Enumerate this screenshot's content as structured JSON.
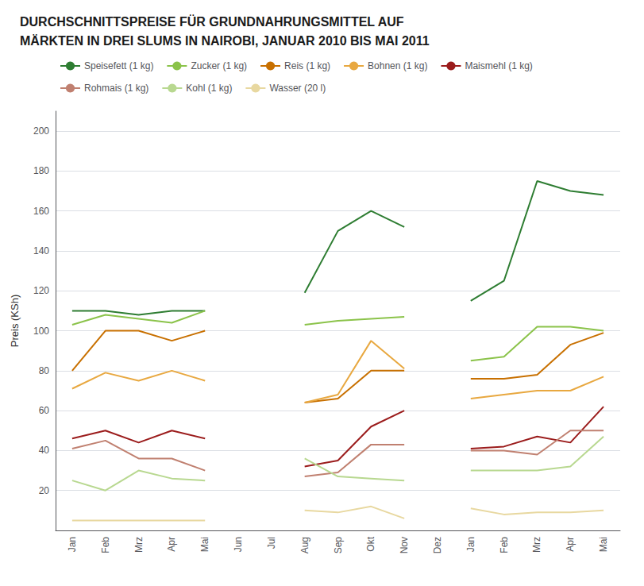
{
  "chart_data": {
    "type": "line",
    "title": "DURCHSCHNITTSPREISE FÜR GRUNDNAHRUNGSMITTEL AUF\nMÄRKTEN IN DREI SLUMS IN NAIROBI, JANUAR 2010 BIS MAI 2011",
    "ylabel": "Preis (KSh)",
    "categories": [
      "Jan",
      "Feb",
      "Mrz",
      "Apr",
      "Mai",
      "Jun",
      "Jul",
      "Aug",
      "Sep",
      "Okt",
      "Nov",
      "Dez",
      "Jan",
      "Feb",
      "Mrz",
      "Apr",
      "Mai"
    ],
    "series": [
      {
        "name": "Speisefett (1 kg)",
        "color": "#2e7d32",
        "values": [
          110,
          110,
          108,
          110,
          110,
          null,
          null,
          119,
          150,
          160,
          152,
          null,
          115,
          125,
          175,
          170,
          168
        ]
      },
      {
        "name": "Zucker (1 kg)",
        "color": "#8bc34a",
        "values": [
          103,
          108,
          106,
          104,
          110,
          null,
          null,
          103,
          105,
          106,
          107,
          null,
          85,
          87,
          102,
          102,
          100
        ]
      },
      {
        "name": "Reis (1 kg)",
        "color": "#c87000",
        "values": [
          80,
          100,
          100,
          95,
          100,
          null,
          null,
          64,
          66,
          80,
          80,
          null,
          76,
          76,
          78,
          93,
          99
        ]
      },
      {
        "name": "Bohnen (1 kg)",
        "color": "#e8a840",
        "values": [
          71,
          79,
          75,
          80,
          75,
          null,
          null,
          64,
          68,
          95,
          81,
          null,
          66,
          68,
          70,
          70,
          77
        ]
      },
      {
        "name": "Maismehl (1 kg)",
        "color": "#9b1c1c",
        "values": [
          46,
          50,
          44,
          50,
          46,
          null,
          null,
          32,
          35,
          52,
          60,
          null,
          41,
          42,
          47,
          44,
          62
        ]
      },
      {
        "name": "Rohmais (1 kg)",
        "color": "#c08070",
        "values": [
          41,
          45,
          36,
          36,
          30,
          null,
          null,
          27,
          29,
          43,
          43,
          null,
          40,
          40,
          38,
          50,
          50
        ]
      },
      {
        "name": "Kohl (1 kg)",
        "color": "#b8d890",
        "values": [
          25,
          20,
          30,
          26,
          25,
          null,
          null,
          36,
          27,
          26,
          25,
          null,
          30,
          30,
          30,
          32,
          47
        ]
      },
      {
        "name": "Wasser (20 l)",
        "color": "#e8d8a0",
        "values": [
          5,
          5,
          5,
          5,
          5,
          null,
          null,
          10,
          9,
          12,
          6,
          null,
          11,
          8,
          9,
          9,
          10
        ]
      }
    ],
    "ylim": [
      0,
      210
    ],
    "yticks": [
      20,
      40,
      60,
      80,
      100,
      120,
      140,
      160,
      180,
      200
    ],
    "grid": true,
    "legend": "upper left"
  }
}
